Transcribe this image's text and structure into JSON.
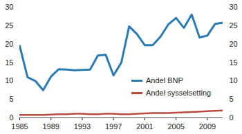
{
  "chart_data": {
    "type": "line",
    "x": [
      1985,
      1986,
      1987,
      1988,
      1989,
      1990,
      1991,
      1992,
      1993,
      1994,
      1995,
      1996,
      1997,
      1998,
      1999,
      2000,
      2001,
      2002,
      2003,
      2004,
      2005,
      2006,
      2007,
      2008,
      2009,
      2010,
      2011
    ],
    "series": [
      {
        "name": "Andel BNP",
        "color": "#2b7bb3",
        "values": [
          19.5,
          11,
          10,
          7.5,
          11.2,
          13.2,
          13.1,
          12.9,
          13,
          13.1,
          16.9,
          17.1,
          11.5,
          15,
          24.8,
          22.7,
          19.7,
          19.7,
          22,
          25.3,
          27.1,
          24.4,
          28,
          21.8,
          22.3,
          25.5,
          25.8
        ]
      },
      {
        "name": "Andel sysselsetting",
        "color": "#b84a3e",
        "values": [
          0.8,
          0.8,
          0.8,
          0.8,
          0.9,
          1.0,
          1.0,
          1.1,
          1.1,
          1.0,
          1.0,
          1.1,
          1.1,
          1.0,
          1.0,
          1.1,
          1.2,
          1.3,
          1.3,
          1.3,
          1.4,
          1.5,
          1.6,
          1.7,
          1.8,
          1.9,
          2.0
        ]
      }
    ],
    "xlim": [
      1985,
      2011
    ],
    "xticks": [
      1985,
      1989,
      1993,
      1997,
      2001,
      2005,
      2009
    ],
    "ylim": [
      0,
      30
    ],
    "yticks": [
      0,
      5,
      10,
      15,
      20,
      25,
      30
    ],
    "y2lim": [
      0,
      30
    ],
    "y2ticks": [
      0,
      5,
      10,
      15,
      20,
      25,
      30
    ],
    "grid": false,
    "legend": "bottom-right"
  }
}
